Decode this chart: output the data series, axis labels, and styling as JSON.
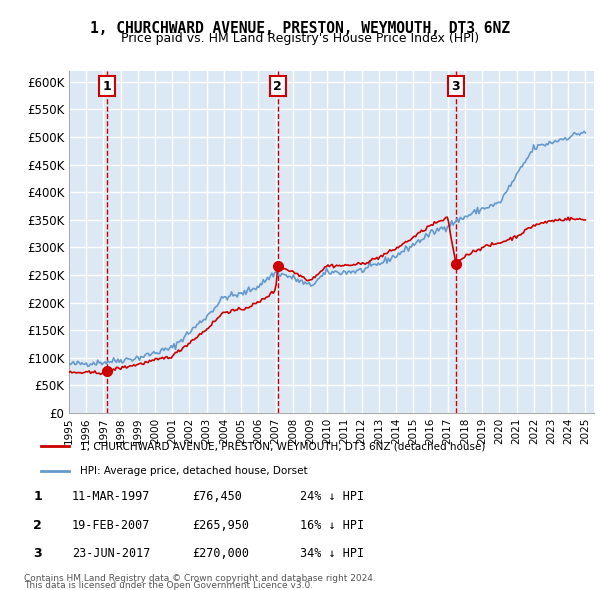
{
  "title": "1, CHURCHWARD AVENUE, PRESTON, WEYMOUTH, DT3 6NZ",
  "subtitle": "Price paid vs. HM Land Registry's House Price Index (HPI)",
  "ylabel": "",
  "ylim": [
    0,
    620000
  ],
  "yticks": [
    0,
    50000,
    100000,
    150000,
    200000,
    250000,
    300000,
    350000,
    400000,
    450000,
    500000,
    550000,
    600000
  ],
  "xlim_start": 1995.0,
  "xlim_end": 2025.5,
  "background_color": "#dce9f5",
  "plot_bg_color": "#dce9f5",
  "grid_color": "#ffffff",
  "sale_dates": [
    1997.19,
    2007.13,
    2017.48
  ],
  "sale_prices": [
    76450,
    265950,
    270000
  ],
  "sale_labels": [
    "1",
    "2",
    "3"
  ],
  "sale_color": "#cc0000",
  "sale_marker_color": "#cc0000",
  "hpi_line_color": "#6699cc",
  "price_line_color": "#cc0000",
  "legend_house_label": "1, CHURCHWARD AVENUE, PRESTON, WEYMOUTH, DT3 6NZ (detached house)",
  "legend_hpi_label": "HPI: Average price, detached house, Dorset",
  "table_rows": [
    {
      "num": "1",
      "date": "11-MAR-1997",
      "price": "£76,450",
      "hpi": "24% ↓ HPI"
    },
    {
      "num": "2",
      "date": "19-FEB-2007",
      "price": "£265,950",
      "hpi": "16% ↓ HPI"
    },
    {
      "num": "3",
      "date": "23-JUN-2017",
      "price": "£270,000",
      "hpi": "34% ↓ HPI"
    }
  ],
  "footnote1": "Contains HM Land Registry data © Crown copyright and database right 2024.",
  "footnote2": "This data is licensed under the Open Government Licence v3.0."
}
